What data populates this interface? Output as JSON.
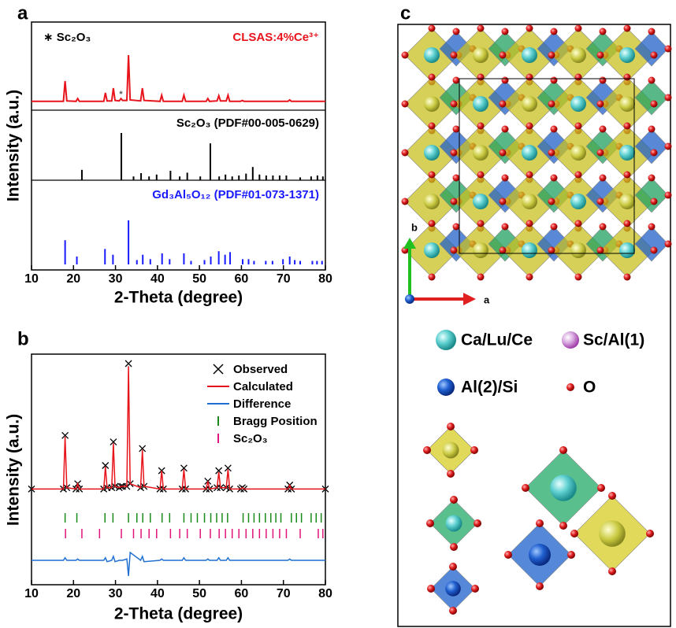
{
  "panels": {
    "a": "a",
    "b": "b",
    "c": "c"
  },
  "chart_data": [
    {
      "type": "xrd-stack",
      "x_label": "2-Theta (degree)",
      "y_label": "Intensity (a.u.)",
      "xlim": [
        10,
        80
      ],
      "xticks": [
        10,
        20,
        30,
        40,
        50,
        60,
        70,
        80
      ],
      "annotations": [
        {
          "text": "∗ Sc₂O₃"
        },
        {
          "text": "*",
          "x": 31.3
        }
      ],
      "series": [
        {
          "name": "CLSAS:4%Ce³⁺",
          "color": "#e8141b",
          "style": "line",
          "x": [
            10,
            17.6,
            18,
            18.4,
            20.6,
            21,
            21.4,
            27.2,
            27.6,
            28,
            29.1,
            29.5,
            29.9,
            30.9,
            31.3,
            31.7,
            32.7,
            33.1,
            33.5,
            36,
            36.4,
            36.8,
            40.6,
            41,
            41.4,
            45.9,
            46.3,
            46.7,
            51.6,
            52,
            52.4,
            54.2,
            54.6,
            55,
            56.4,
            56.8,
            57.2,
            59.8,
            60.2,
            60.6,
            71.1,
            71.5,
            71.9,
            80
          ],
          "values": [
            2,
            2,
            45,
            3,
            2,
            8,
            2,
            2,
            20,
            3,
            3,
            30,
            4,
            3,
            8,
            4,
            4,
            100,
            5,
            3,
            30,
            4,
            2,
            15,
            2,
            2,
            15,
            2,
            2,
            8,
            2,
            3,
            14,
            3,
            3,
            15,
            2,
            2,
            4,
            2,
            2,
            5,
            2,
            2
          ]
        },
        {
          "name": "Sc₂O₃ (PDF#00-005-0629)",
          "color": "#000000",
          "style": "stick",
          "x": [
            22,
            31.4,
            34.3,
            36.1,
            38,
            39.8,
            43.1,
            45.3,
            47.1,
            50.2,
            52.6,
            54.7,
            56.2,
            57.8,
            59.4,
            61.1,
            62.7,
            64.3,
            65.9,
            67.5,
            69.1,
            70.7,
            74,
            76.6,
            78.1,
            79.4
          ],
          "values": [
            22,
            100,
            8,
            15,
            8,
            12,
            20,
            8,
            16,
            8,
            78,
            8,
            12,
            8,
            10,
            14,
            28,
            12,
            10,
            10,
            10,
            10,
            6,
            8,
            10,
            8
          ]
        },
        {
          "name": "Gd₃Al₅O₁₂ (PDF#01-073-1371)",
          "color": "#1a1aff",
          "style": "stick",
          "x": [
            18,
            20.8,
            27.5,
            29.4,
            33.1,
            35.1,
            36.5,
            38.3,
            41.1,
            42.9,
            46.3,
            48,
            51.2,
            52.7,
            54.6,
            56.1,
            57.3,
            60.3,
            61.7,
            63,
            65.8,
            67.4,
            69.9,
            71.5,
            72.7,
            74,
            76.9,
            78,
            79.2
          ],
          "values": [
            55,
            18,
            35,
            22,
            100,
            10,
            22,
            12,
            25,
            12,
            25,
            8,
            10,
            18,
            30,
            22,
            28,
            12,
            12,
            8,
            8,
            8,
            12,
            18,
            10,
            8,
            8,
            8,
            8
          ]
        }
      ]
    },
    {
      "type": "rietveld",
      "x_label": "2-Theta (degree)",
      "y_label": "Intensity (a.u.)",
      "xlim": [
        10,
        80
      ],
      "xticks": [
        10,
        20,
        30,
        40,
        50,
        60,
        70,
        80
      ],
      "x": [
        10,
        17.6,
        18,
        18.4,
        20.6,
        21,
        21.4,
        27.2,
        27.6,
        28,
        29.1,
        29.5,
        29.9,
        30.9,
        31.3,
        31.7,
        32.7,
        33.1,
        33.5,
        36,
        36.4,
        36.8,
        40.6,
        41,
        41.4,
        45.9,
        46.3,
        46.7,
        51.6,
        52,
        52.4,
        54.2,
        54.6,
        55,
        56.4,
        56.8,
        57.2,
        59.8,
        60.2,
        60.6,
        71.1,
        71.5,
        71.9,
        80
      ],
      "series": [
        {
          "name": "Observed",
          "color": "#000000",
          "marker": "x",
          "values": [
            4,
            4,
            45,
            5,
            4,
            8,
            4,
            4,
            22,
            5,
            5,
            40,
            6,
            5,
            6,
            6,
            6,
            100,
            8,
            5,
            35,
            6,
            4,
            18,
            4,
            4,
            20,
            4,
            4,
            10,
            4,
            5,
            18,
            5,
            5,
            20,
            4,
            4,
            5,
            4,
            4,
            7,
            4,
            4
          ]
        },
        {
          "name": "Calculated",
          "color": "#e8141b",
          "marker": "line",
          "values": [
            4,
            4,
            44,
            5,
            4,
            8,
            4,
            4,
            21,
            5,
            5,
            39,
            6,
            5,
            6,
            6,
            6,
            98,
            8,
            5,
            34,
            6,
            4,
            18,
            4,
            4,
            19,
            4,
            4,
            10,
            4,
            5,
            17,
            5,
            5,
            19,
            4,
            4,
            5,
            4,
            4,
            7,
            4,
            4
          ]
        },
        {
          "name": "Difference",
          "color": "#1f6fd1",
          "marker": "line",
          "values": [
            0,
            0,
            2,
            0,
            0,
            1,
            0,
            0,
            2,
            -1,
            0,
            3,
            -1,
            0,
            0,
            0,
            1,
            -12,
            6,
            0,
            3,
            -1,
            0,
            1,
            0,
            0,
            2,
            0,
            0,
            1,
            0,
            0,
            2,
            0,
            0,
            2,
            0,
            0,
            0,
            0,
            0,
            1,
            0,
            0
          ]
        }
      ],
      "bragg": [
        {
          "name": "Bragg Position",
          "color": "#1a8a1a",
          "positions": [
            18,
            20.8,
            27.5,
            29.4,
            33.1,
            35.1,
            36.5,
            38.3,
            41.1,
            42.9,
            46.3,
            48,
            49.5,
            51.2,
            52.7,
            54.1,
            55.4,
            56.7,
            60.4,
            61.7,
            63,
            64.3,
            65.7,
            67,
            68.2,
            69.4,
            71.9,
            73.1,
            74.3,
            76.6,
            77.8,
            79
          ]
        },
        {
          "name": "Sc₂O₃",
          "color": "#e0147a",
          "positions": [
            18.1,
            22,
            26.2,
            31.4,
            34.3,
            36.1,
            38,
            39.8,
            43.1,
            45.3,
            47.1,
            50.2,
            52.6,
            54.7,
            56.2,
            57.8,
            59.4,
            61.1,
            62.7,
            64.3,
            65.9,
            67.5,
            69.1,
            70.7,
            74,
            78.3,
            79.4
          ]
        }
      ]
    }
  ],
  "structure": {
    "axis_labels": {
      "b": "b",
      "a": "a"
    },
    "legend": [
      "Ca/Lu/Ce",
      "Sc/Al(1)",
      "Al(2)/Si",
      "O"
    ]
  }
}
